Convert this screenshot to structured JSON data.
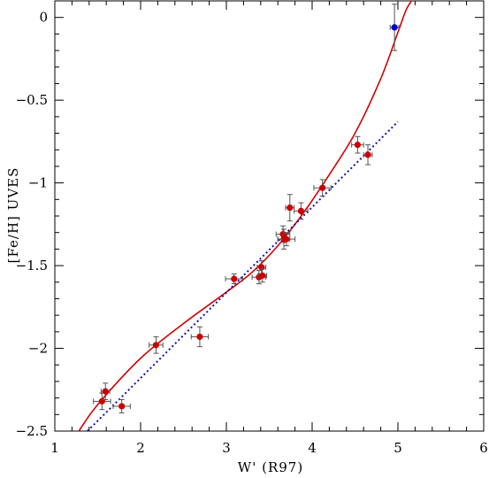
{
  "chart_data": {
    "type": "scatter",
    "xlabel": "W' (R97)",
    "ylabel": "[Fe/H] UVES",
    "xlim": [
      1,
      6
    ],
    "ylim": [
      -2.5,
      0.1
    ],
    "x_ticks": [
      1,
      2,
      3,
      4,
      5,
      6
    ],
    "x_tick_labels": [
      "1",
      "2",
      "3",
      "4",
      "5",
      "6"
    ],
    "y_ticks": [
      -2.5,
      -2,
      -1.5,
      -1,
      -0.5,
      0
    ],
    "y_tick_labels": [
      "−2.5",
      "−2",
      "−1.5",
      "−1",
      "−0.5",
      "0"
    ],
    "grid": false,
    "points": [
      {
        "x": 1.55,
        "y": -2.32,
        "xerr": 0.1,
        "yerr": 0.05
      },
      {
        "x": 1.59,
        "y": -2.26,
        "xerr": 0.05,
        "yerr": 0.05
      },
      {
        "x": 1.78,
        "y": -2.35,
        "xerr": 0.1,
        "yerr": 0.04
      },
      {
        "x": 2.18,
        "y": -1.98,
        "xerr": 0.08,
        "yerr": 0.05
      },
      {
        "x": 2.69,
        "y": -1.93,
        "xerr": 0.1,
        "yerr": 0.06
      },
      {
        "x": 3.09,
        "y": -1.58,
        "xerr": 0.1,
        "yerr": 0.03
      },
      {
        "x": 3.38,
        "y": -1.57,
        "xerr": 0.08,
        "yerr": 0.04
      },
      {
        "x": 3.41,
        "y": -1.51,
        "xerr": 0.05,
        "yerr": 0.04
      },
      {
        "x": 3.42,
        "y": -1.56,
        "xerr": 0.05,
        "yerr": 0.04
      },
      {
        "x": 3.66,
        "y": -1.31,
        "xerr": 0.08,
        "yerr": 0.05
      },
      {
        "x": 3.67,
        "y": -1.34,
        "xerr": 0.07,
        "yerr": 0.06
      },
      {
        "x": 3.7,
        "y": -1.34,
        "xerr": 0.1,
        "yerr": 0.04
      },
      {
        "x": 3.74,
        "y": -1.15,
        "xerr": 0.05,
        "yerr": 0.08
      },
      {
        "x": 3.87,
        "y": -1.17,
        "xerr": 0.08,
        "yerr": 0.05
      },
      {
        "x": 4.12,
        "y": -1.03,
        "xerr": 0.1,
        "yerr": 0.05
      },
      {
        "x": 4.53,
        "y": -0.77,
        "xerr": 0.07,
        "yerr": 0.05
      },
      {
        "x": 4.65,
        "y": -0.83,
        "xerr": 0.05,
        "yerr": 0.06
      },
      {
        "x": 4.96,
        "y": -0.06,
        "xerr": 0.05,
        "yerr": 0.14,
        "highlight": true
      }
    ],
    "lines": [
      {
        "style": "solid",
        "color": "#d10000",
        "x": [
          1.28,
          1.5,
          2.0,
          2.5,
          3.0,
          3.3,
          3.6,
          3.9,
          4.2,
          4.5,
          4.8,
          5.0,
          5.1,
          5.2
        ],
        "y": [
          -2.5,
          -2.34,
          -2.06,
          -1.85,
          -1.66,
          -1.54,
          -1.38,
          -1.18,
          -0.95,
          -0.7,
          -0.37,
          -0.09,
          0.05,
          0.13
        ]
      },
      {
        "style": "dotted",
        "color": "#1010b0",
        "x": [
          1.38,
          5.0
        ],
        "y": [
          -2.5,
          -0.63
        ]
      }
    ],
    "colors": {
      "points": "#cc0000",
      "highlight": "#0000cc",
      "errorbars": "#555555"
    }
  }
}
